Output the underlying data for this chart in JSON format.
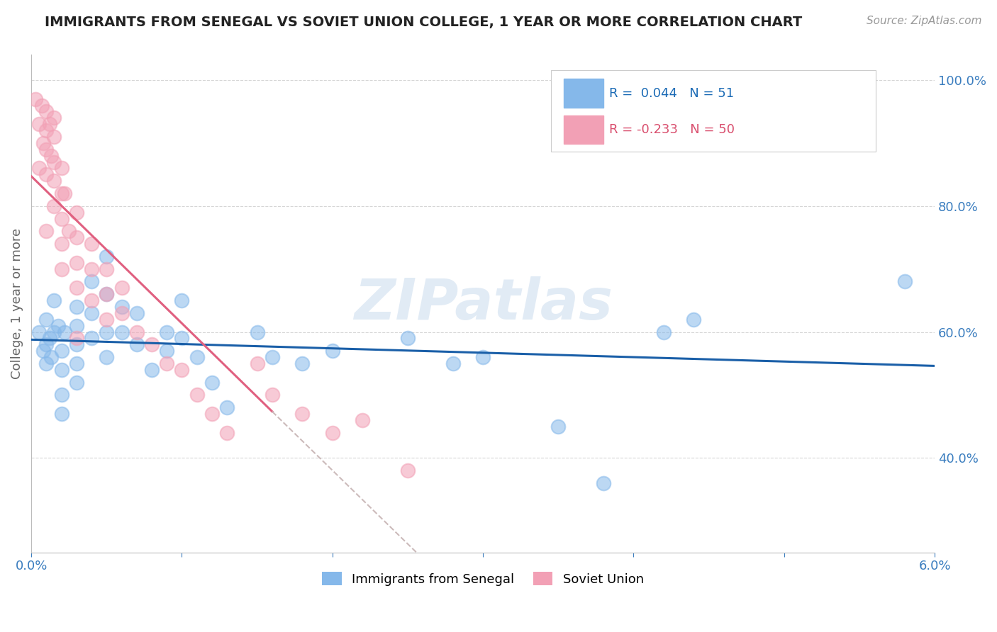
{
  "title": "IMMIGRANTS FROM SENEGAL VS SOVIET UNION COLLEGE, 1 YEAR OR MORE CORRELATION CHART",
  "source_text": "Source: ZipAtlas.com",
  "xlabel": "",
  "ylabel": "College, 1 year or more",
  "xlim": [
    0.0,
    0.06
  ],
  "ylim": [
    0.25,
    1.04
  ],
  "xticks": [
    0.0,
    0.01,
    0.02,
    0.03,
    0.04,
    0.05,
    0.06
  ],
  "xticklabels": [
    "0.0%",
    "",
    "",
    "",
    "",
    "",
    "6.0%"
  ],
  "yticks": [
    0.4,
    0.6,
    0.8,
    1.0
  ],
  "yticklabels": [
    "40.0%",
    "60.0%",
    "80.0%",
    "100.0%"
  ],
  "r_senegal": 0.044,
  "n_senegal": 51,
  "r_soviet": -0.233,
  "n_soviet": 50,
  "color_senegal": "#85b8ea",
  "color_soviet": "#f2a0b5",
  "senegal_x": [
    0.0005,
    0.0008,
    0.001,
    0.001,
    0.001,
    0.0012,
    0.0013,
    0.0015,
    0.0015,
    0.0018,
    0.002,
    0.002,
    0.002,
    0.002,
    0.0022,
    0.003,
    0.003,
    0.003,
    0.003,
    0.003,
    0.004,
    0.004,
    0.004,
    0.005,
    0.005,
    0.005,
    0.005,
    0.006,
    0.006,
    0.007,
    0.007,
    0.008,
    0.009,
    0.009,
    0.01,
    0.01,
    0.011,
    0.012,
    0.013,
    0.015,
    0.016,
    0.018,
    0.02,
    0.025,
    0.028,
    0.03,
    0.035,
    0.038,
    0.042,
    0.044,
    0.058
  ],
  "senegal_y": [
    0.6,
    0.57,
    0.62,
    0.58,
    0.55,
    0.59,
    0.56,
    0.65,
    0.6,
    0.61,
    0.57,
    0.54,
    0.5,
    0.47,
    0.6,
    0.64,
    0.61,
    0.58,
    0.55,
    0.52,
    0.68,
    0.63,
    0.59,
    0.72,
    0.66,
    0.6,
    0.56,
    0.64,
    0.6,
    0.63,
    0.58,
    0.54,
    0.6,
    0.57,
    0.65,
    0.59,
    0.56,
    0.52,
    0.48,
    0.6,
    0.56,
    0.55,
    0.57,
    0.59,
    0.55,
    0.56,
    0.45,
    0.36,
    0.6,
    0.62,
    0.68
  ],
  "soviet_x": [
    0.0003,
    0.0005,
    0.0005,
    0.0007,
    0.0008,
    0.001,
    0.001,
    0.001,
    0.001,
    0.0012,
    0.0013,
    0.0015,
    0.0015,
    0.0015,
    0.0015,
    0.002,
    0.002,
    0.002,
    0.002,
    0.0022,
    0.0025,
    0.003,
    0.003,
    0.003,
    0.003,
    0.004,
    0.004,
    0.004,
    0.005,
    0.005,
    0.005,
    0.006,
    0.006,
    0.007,
    0.008,
    0.009,
    0.01,
    0.011,
    0.012,
    0.013,
    0.015,
    0.016,
    0.018,
    0.02,
    0.022,
    0.025,
    0.001,
    0.002,
    0.0015,
    0.003
  ],
  "soviet_y": [
    0.97,
    0.93,
    0.86,
    0.96,
    0.9,
    0.95,
    0.92,
    0.89,
    0.85,
    0.93,
    0.88,
    0.91,
    0.87,
    0.84,
    0.8,
    0.86,
    0.82,
    0.78,
    0.74,
    0.82,
    0.76,
    0.79,
    0.75,
    0.71,
    0.67,
    0.74,
    0.7,
    0.65,
    0.7,
    0.66,
    0.62,
    0.67,
    0.63,
    0.6,
    0.58,
    0.55,
    0.54,
    0.5,
    0.47,
    0.44,
    0.55,
    0.5,
    0.47,
    0.44,
    0.46,
    0.38,
    0.76,
    0.7,
    0.94,
    0.59
  ],
  "watermark": "ZIPatlas",
  "legend_r_color": "#1a6ab5",
  "legend_r2_color": "#d94f6e",
  "background_color": "#ffffff",
  "grid_color": "#cccccc",
  "title_color": "#222222",
  "axis_label_color": "#666666",
  "senegal_line_color": "#1a5fa8",
  "soviet_line_color": "#e06080",
  "dash_color": "#ccbbbb"
}
